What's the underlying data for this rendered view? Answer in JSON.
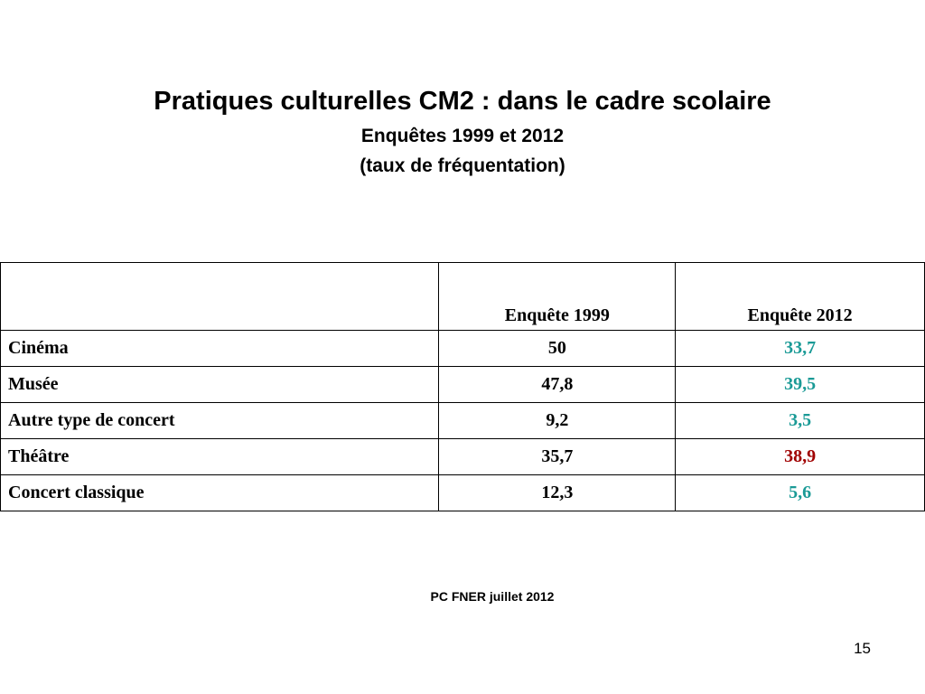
{
  "slide": {
    "title": "Pratiques culturelles CM2 : dans le cadre scolaire",
    "subtitle_1": "Enquêtes 1999 et 2012",
    "subtitle_2": "(taux de fréquentation)",
    "source": "PC FNER juillet 2012",
    "page_number": "15"
  },
  "table": {
    "headers": [
      "",
      "Enquête 1999",
      "Enquête 2012"
    ],
    "rows": [
      {
        "label": "Cinéma",
        "v1999": "50",
        "v2012": "33,7",
        "v2012_color": "#1a9a96"
      },
      {
        "label": "Musée",
        "v1999": "47,8",
        "v2012": "39,5",
        "v2012_color": "#1a9a96"
      },
      {
        "label": "Autre type de concert",
        "v1999": "9,2",
        "v2012": "3,5",
        "v2012_color": "#1a9a96"
      },
      {
        "label": "Théâtre",
        "v1999": "35,7",
        "v2012": "38,9",
        "v2012_color": "#a00000"
      },
      {
        "label": "Concert classique",
        "v1999": "12,3",
        "v2012": "5,6",
        "v2012_color": "#1a9a96"
      }
    ]
  }
}
